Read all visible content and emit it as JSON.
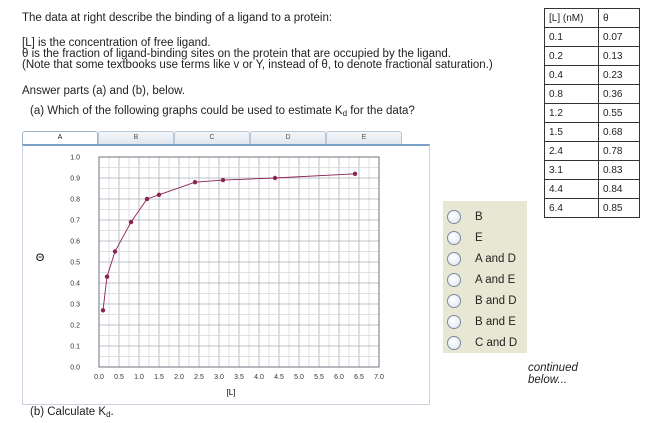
{
  "intro": {
    "line1": "The data at right describe the binding of a ligand to a protein:",
    "line2": "[L] is the concentration of free ligand.",
    "line3": "θ is the fraction of ligand-binding sites on the protein that are occupied by the ligand.",
    "line4": "(Note that some textbooks use terms like v or Y, instead of θ, to denote fractional saturation.)"
  },
  "answer_prompt": "Answer parts (a) and (b), below.",
  "question_a": {
    "prefix": "(a) Which of the following graphs could be used to estimate K",
    "sub": "d",
    "suffix": " for the data?"
  },
  "question_b": {
    "prefix": "(b) Calculate K",
    "sub": "d",
    "suffix": "."
  },
  "tabs": [
    "A",
    "B",
    "C",
    "D",
    "E"
  ],
  "active_tab": "A",
  "table": {
    "headers": [
      "[L] (nM)",
      "θ"
    ],
    "rows": [
      [
        "0.1",
        "0.07"
      ],
      [
        "0.2",
        "0.13"
      ],
      [
        "0.4",
        "0.23"
      ],
      [
        "0.8",
        "0.36"
      ],
      [
        "1.2",
        "0.55"
      ],
      [
        "1.5",
        "0.68"
      ],
      [
        "2.4",
        "0.78"
      ],
      [
        "3.1",
        "0.83"
      ],
      [
        "4.4",
        "0.84"
      ],
      [
        "6.4",
        "0.85"
      ]
    ]
  },
  "options": [
    "B",
    "E",
    "A and D",
    "A and E",
    "B and D",
    "B and E",
    "C and D"
  ],
  "continued": {
    "line1": "continued",
    "line2": "below..."
  },
  "chart_data": {
    "type": "line",
    "xlabel": "[L]",
    "ylabel": "Θ",
    "xlim": [
      0,
      7.0
    ],
    "ylim": [
      0,
      1.0
    ],
    "xticks": [
      "0.0",
      "0.5",
      "1.0",
      "1.5",
      "2.0",
      "2.5",
      "3.0",
      "3.5",
      "4.0",
      "4.5",
      "5.0",
      "5.5",
      "6.0",
      "6.5",
      "7.0"
    ],
    "yticks": [
      "0.0",
      "0.1",
      "0.2",
      "0.3",
      "0.4",
      "0.5",
      "0.6",
      "0.7",
      "0.8",
      "0.9",
      "1.0"
    ],
    "grid": true,
    "x": [
      0.1,
      0.2,
      0.4,
      0.8,
      1.2,
      1.5,
      2.4,
      3.1,
      4.4,
      6.4
    ],
    "y": [
      0.27,
      0.43,
      0.55,
      0.69,
      0.8,
      0.82,
      0.88,
      0.89,
      0.9,
      0.92
    ],
    "color": "#8b2252"
  }
}
